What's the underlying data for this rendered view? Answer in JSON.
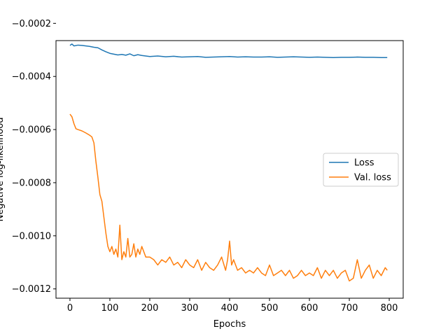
{
  "chart_data": {
    "type": "line",
    "title": "",
    "xlabel": "Epochs",
    "ylabel": "Negative log-likelihood",
    "xlim": [
      -35,
      835
    ],
    "ylim": [
      -0.001235,
      -0.000265
    ],
    "xticks": [
      0,
      100,
      200,
      300,
      400,
      500,
      600,
      700,
      800
    ],
    "xtick_labels": [
      "0",
      "100",
      "200",
      "300",
      "400",
      "500",
      "600",
      "700",
      "800"
    ],
    "yticks": [
      -0.0012,
      -0.001,
      -0.0008,
      -0.0006,
      -0.0004,
      -0.0002
    ],
    "ytick_labels": [
      "−0.0012",
      "−0.0010",
      "−0.0008",
      "−0.0006",
      "−0.0004",
      "−0.0002"
    ],
    "grid": false,
    "legend_position": "center-right",
    "series": [
      {
        "name": "Loss",
        "color": "#1f77b4",
        "x": [
          0,
          5,
          10,
          20,
          30,
          40,
          50,
          60,
          70,
          80,
          90,
          100,
          110,
          120,
          130,
          140,
          150,
          160,
          170,
          180,
          190,
          200,
          220,
          240,
          260,
          280,
          300,
          320,
          340,
          360,
          380,
          400,
          420,
          440,
          460,
          480,
          500,
          520,
          540,
          560,
          580,
          600,
          620,
          640,
          660,
          680,
          700,
          720,
          740,
          760,
          780,
          795
        ],
        "y": [
          -0.000283,
          -0.000278,
          -0.000285,
          -0.000282,
          -0.000283,
          -0.000285,
          -0.000287,
          -0.00029,
          -0.000292,
          -0.0003,
          -0.000307,
          -0.000313,
          -0.000316,
          -0.000319,
          -0.000317,
          -0.00032,
          -0.000315,
          -0.000322,
          -0.000318,
          -0.000321,
          -0.000323,
          -0.000325,
          -0.000323,
          -0.000326,
          -0.000324,
          -0.000327,
          -0.000326,
          -0.000325,
          -0.000328,
          -0.000327,
          -0.000326,
          -0.000325,
          -0.000327,
          -0.000326,
          -0.000327,
          -0.000327,
          -0.000326,
          -0.000328,
          -0.000327,
          -0.000326,
          -0.000327,
          -0.000328,
          -0.000327,
          -0.000328,
          -0.000329,
          -0.000328,
          -0.000328,
          -0.000327,
          -0.000328,
          -0.000328,
          -0.000329,
          -0.000329
        ]
      },
      {
        "name": "Val. loss",
        "color": "#ff7f0e",
        "x": [
          0,
          5,
          10,
          15,
          20,
          30,
          40,
          50,
          55,
          60,
          65,
          70,
          75,
          80,
          85,
          90,
          95,
          100,
          105,
          110,
          115,
          120,
          125,
          130,
          135,
          140,
          145,
          150,
          155,
          160,
          165,
          170,
          175,
          180,
          190,
          200,
          210,
          220,
          230,
          240,
          250,
          260,
          270,
          280,
          290,
          300,
          310,
          320,
          330,
          340,
          350,
          360,
          370,
          380,
          390,
          395,
          400,
          405,
          410,
          420,
          430,
          440,
          450,
          460,
          470,
          480,
          490,
          500,
          510,
          520,
          530,
          540,
          550,
          560,
          570,
          580,
          590,
          600,
          610,
          620,
          630,
          640,
          650,
          660,
          670,
          680,
          690,
          700,
          710,
          720,
          730,
          740,
          750,
          760,
          770,
          780,
          790,
          795
        ],
        "y": [
          -0.000542,
          -0.000552,
          -0.000578,
          -0.000597,
          -0.0006,
          -0.000605,
          -0.000613,
          -0.000622,
          -0.000628,
          -0.00065,
          -0.00072,
          -0.00078,
          -0.000845,
          -0.00087,
          -0.00093,
          -0.00099,
          -0.00104,
          -0.00106,
          -0.00104,
          -0.00107,
          -0.00105,
          -0.00108,
          -0.00096,
          -0.00109,
          -0.00106,
          -0.00108,
          -0.00101,
          -0.00108,
          -0.00107,
          -0.00103,
          -0.00108,
          -0.00105,
          -0.00107,
          -0.00104,
          -0.00108,
          -0.00108,
          -0.00109,
          -0.00111,
          -0.00109,
          -0.0011,
          -0.00108,
          -0.00111,
          -0.0011,
          -0.00112,
          -0.00109,
          -0.00111,
          -0.00112,
          -0.00109,
          -0.00113,
          -0.0011,
          -0.00112,
          -0.00113,
          -0.00111,
          -0.00108,
          -0.00113,
          -0.00109,
          -0.00102,
          -0.00111,
          -0.00109,
          -0.00113,
          -0.00112,
          -0.00114,
          -0.00113,
          -0.00114,
          -0.00112,
          -0.00114,
          -0.00115,
          -0.00111,
          -0.00115,
          -0.00114,
          -0.00113,
          -0.00115,
          -0.00113,
          -0.00116,
          -0.00115,
          -0.00113,
          -0.00115,
          -0.00114,
          -0.00115,
          -0.00112,
          -0.00116,
          -0.00113,
          -0.00115,
          -0.00113,
          -0.00116,
          -0.00114,
          -0.00113,
          -0.00117,
          -0.00116,
          -0.00109,
          -0.00116,
          -0.00113,
          -0.00111,
          -0.00116,
          -0.00113,
          -0.00115,
          -0.00112,
          -0.00113
        ]
      }
    ]
  }
}
